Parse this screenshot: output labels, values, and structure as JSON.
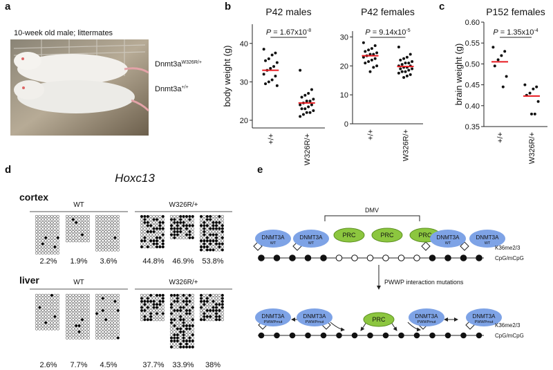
{
  "panel_labels": [
    "a",
    "b",
    "c",
    "d",
    "e"
  ],
  "photo": {
    "caption": "10-week old male; littermates",
    "labels": [
      {
        "text": "Dnmt3a",
        "sup": "W326R/+"
      },
      {
        "text": "Dnmt3a",
        "sup": "+/+"
      }
    ]
  },
  "chart_data": [
    {
      "type": "strip",
      "title": "P42 males",
      "annotation": {
        "italic": "P",
        "text": " = 1.67x10",
        "sup": "-8"
      },
      "y_label": "body weight (g)",
      "categories": [
        "+/+",
        "W326R/+"
      ],
      "values": [
        [
          38.5,
          37.5,
          37,
          36,
          35.5,
          35,
          34,
          33.5,
          33,
          32,
          31.5,
          30.5,
          30,
          29.5,
          29
        ],
        [
          33,
          28,
          27,
          26.5,
          26,
          25.5,
          25,
          25,
          24.5,
          24,
          24,
          23.5,
          23,
          23,
          22.5,
          22,
          22,
          21.5,
          21
        ]
      ],
      "means": [
        33,
        24.5
      ],
      "point_color": "#111111",
      "mean_color": "#e8191f",
      "ylim": [
        18,
        45
      ],
      "yticks": [
        20,
        30,
        40
      ]
    },
    {
      "type": "strip",
      "title": "P42 females",
      "annotation": {
        "italic": "P",
        "text": " = 9.14x10",
        "sup": "-5"
      },
      "categories": [
        "+/+",
        "W326R/+"
      ],
      "values": [
        [
          28,
          27,
          26,
          25.5,
          25,
          24.5,
          24,
          24,
          23.5,
          23,
          22.5,
          22,
          21.5,
          21,
          20,
          19.5,
          18
        ],
        [
          26.5,
          24,
          23,
          22.5,
          22,
          21.5,
          21,
          21,
          20.5,
          20,
          20,
          19.5,
          19.5,
          19,
          19,
          18.5,
          18,
          18,
          17.5,
          17,
          16.5,
          16
        ]
      ],
      "means": [
        23.5,
        19.8
      ],
      "point_color": "#111111",
      "mean_color": "#e8191f",
      "ylim": [
        0,
        32
      ],
      "yticks": [
        0,
        10,
        20,
        30
      ]
    },
    {
      "type": "strip",
      "title": "P152 females",
      "annotation": {
        "italic": "P",
        "text": " = 1.35x10",
        "sup": "-4"
      },
      "y_label": "brain weight (g)",
      "categories": [
        "+/+",
        "W326R/+"
      ],
      "values": [
        [
          0.54,
          0.53,
          0.52,
          0.51,
          0.495,
          0.47,
          0.445
        ],
        [
          0.45,
          0.445,
          0.44,
          0.43,
          0.425,
          0.41,
          0.38,
          0.38
        ]
      ],
      "means": [
        0.505,
        0.423
      ],
      "point_color": "#111111",
      "mean_color": "#e8191f",
      "ylim": [
        0.35,
        0.6
      ],
      "yticks": [
        0.35,
        {
          "value": 0.4,
          "label": "0.40"
        },
        {
          "value": 0.45,
          "label": "0.45"
        },
        {
          "value": 0.5,
          "label": "0.50"
        },
        0.55,
        {
          "value": 0.6,
          "label": "0.60"
        }
      ]
    }
  ],
  "methylation": {
    "title": "Hoxc13",
    "tissues": [
      {
        "name": "cortex",
        "groups": [
          {
            "name": "WT",
            "percentages": [
              "2.2%",
              "1.9%",
              "3.6%"
            ]
          },
          {
            "name": "W326R/+",
            "percentages": [
              "44.8%",
              "46.9%",
              "53.8%"
            ]
          }
        ]
      },
      {
        "name": "liver",
        "groups": [
          {
            "name": "WT",
            "percentages": [
              "2.6%",
              "7.7%",
              "4.5%"
            ]
          },
          {
            "name": "W326R/+",
            "percentages": [
              "37.7%",
              "33.9%",
              "38%"
            ]
          }
        ]
      }
    ]
  },
  "diagram": {
    "region_label": "DMV",
    "top_nodes": [
      {
        "label": "DNMT3A",
        "sub": "WT"
      },
      {
        "label": "DNMT3A",
        "sub": "WT"
      },
      {
        "label": "PRC"
      },
      {
        "label": "PRC"
      },
      {
        "label": "PRC"
      },
      {
        "label": "DNMT3A",
        "sub": "WT"
      },
      {
        "label": "DNMT3A",
        "sub": "WT"
      }
    ],
    "bottom_nodes": [
      {
        "label": "DNMT3A",
        "sub": "PWWPmut"
      },
      {
        "label": "DNMT3A",
        "sub": "PWWPmut"
      },
      {
        "label": "PRC"
      },
      {
        "label": "DNMT3A",
        "sub": "PWWPmut"
      },
      {
        "label": "DNMT3A",
        "sub": "PWWPmut"
      }
    ],
    "top_tracks": [
      "K36me2/3",
      "CpG/mCpG"
    ],
    "bottom_tracks": [
      "K36me2/3",
      "CpG/mCpG"
    ],
    "transition": "PWWP interaction mutations"
  }
}
